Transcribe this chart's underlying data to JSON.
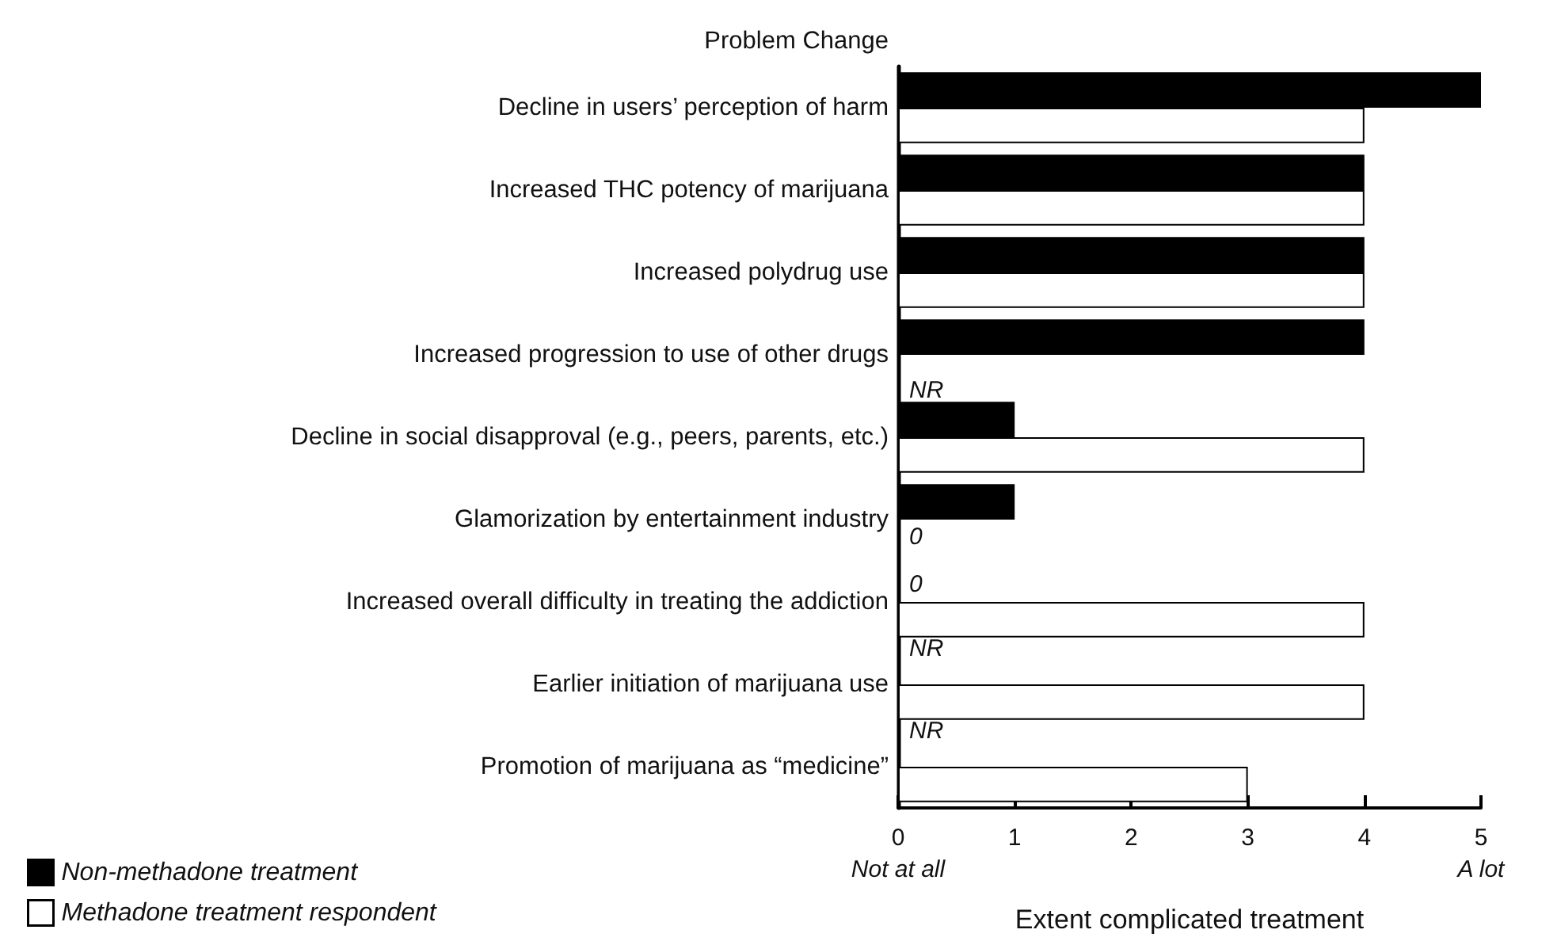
{
  "chart_data": {
    "type": "bar",
    "orientation": "horizontal",
    "ylabel": "Problem Change",
    "xlabel": "Extent complicated treatment",
    "categories": [
      "Decline in users’ perception of harm",
      "Increased THC potency of marijuana",
      "Increased polydrug use",
      "Increased progression to use of other drugs",
      "Decline in social disapproval (e.g., peers, parents, etc.)",
      "Glamorization by entertainment industry",
      "Increased overall difficulty in treating the addiction",
      "Earlier initiation of marijuana use",
      "Promotion of marijuana as “medicine”"
    ],
    "series": [
      {
        "name": "Non-methadone treatment",
        "color": "#000000",
        "values": [
          5,
          4,
          4,
          4,
          1,
          1,
          0,
          null,
          null
        ],
        "value_labels": [
          null,
          null,
          null,
          null,
          null,
          null,
          "0",
          "NR",
          "NR"
        ]
      },
      {
        "name": "Methadone treatment respondent",
        "color": "#ffffff",
        "values": [
          4,
          4,
          4,
          null,
          4,
          0,
          4,
          4,
          3
        ],
        "value_labels": [
          null,
          null,
          null,
          "NR",
          null,
          "0",
          null,
          null,
          null
        ]
      }
    ],
    "xlim": [
      0,
      5
    ],
    "xticks": [
      {
        "value": 0,
        "label": "0\nNot at all"
      },
      1,
      2,
      3,
      4,
      {
        "value": 5,
        "label": "5\nA lot"
      }
    ],
    "grid": false,
    "legend": "bottom left"
  }
}
